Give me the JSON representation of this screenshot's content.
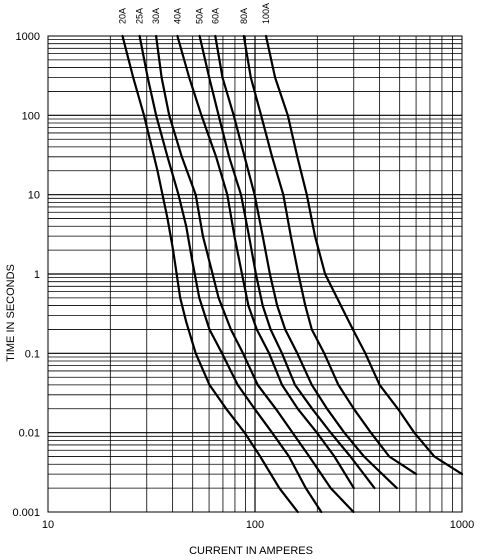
{
  "chart_data": {
    "type": "line",
    "title": "",
    "xlabel": "CURRENT IN AMPERES",
    "ylabel": "TIME IN SECONDS",
    "x_scale": "log",
    "y_scale": "log",
    "xlim": [
      10,
      1000
    ],
    "ylim": [
      0.001,
      1000
    ],
    "x_tick_labels": [
      "10",
      "100",
      "1000"
    ],
    "y_tick_labels": [
      "0.001",
      "0.01",
      "0.1",
      "1",
      "10",
      "100",
      "1000"
    ],
    "grid": true,
    "series": [
      {
        "name": "20A",
        "points": [
          [
            22.9,
            1000
          ],
          [
            25.8,
            300
          ],
          [
            29.1,
            100
          ],
          [
            33.8,
            20
          ],
          [
            37.8,
            5
          ],
          [
            40.2,
            2
          ],
          [
            43.5,
            0.5
          ],
          [
            46.5,
            0.25
          ],
          [
            51.7,
            0.1
          ],
          [
            60.3,
            0.04
          ],
          [
            72.6,
            0.02
          ],
          [
            89.1,
            0.01
          ],
          [
            106,
            0.005
          ],
          [
            131,
            0.002
          ],
          [
            161,
            0.001
          ]
        ]
      },
      {
        "name": "25A",
        "points": [
          [
            27.7,
            1000
          ],
          [
            30.3,
            300
          ],
          [
            33.3,
            100
          ],
          [
            37.8,
            30
          ],
          [
            42.7,
            10
          ],
          [
            46.5,
            4
          ],
          [
            49.7,
            1.5
          ],
          [
            53.8,
            0.5
          ],
          [
            60.3,
            0.2
          ],
          [
            69.3,
            0.1
          ],
          [
            82.5,
            0.04
          ],
          [
            99.6,
            0.02
          ],
          [
            121,
            0.01
          ],
          [
            146,
            0.005
          ],
          [
            176,
            0.002
          ],
          [
            209,
            0.001
          ]
        ]
      },
      {
        "name": "30A",
        "points": [
          [
            33.3,
            1000
          ],
          [
            35.4,
            300
          ],
          [
            38.5,
            100
          ],
          [
            44.3,
            30
          ],
          [
            51.7,
            10
          ],
          [
            56,
            3
          ],
          [
            61.3,
            1.2
          ],
          [
            66.7,
            0.5
          ],
          [
            76.5,
            0.2
          ],
          [
            87.5,
            0.1
          ],
          [
            103,
            0.04
          ],
          [
            126,
            0.02
          ],
          [
            152,
            0.01
          ],
          [
            183,
            0.005
          ],
          [
            232,
            0.002
          ],
          [
            299,
            0.001
          ]
        ]
      },
      {
        "name": "40A",
        "points": [
          [
            42.2,
            1000
          ],
          [
            48.1,
            300
          ],
          [
            55.1,
            100
          ],
          [
            64.9,
            30
          ],
          [
            73.5,
            10
          ],
          [
            79.5,
            3
          ],
          [
            86.5,
            1
          ],
          [
            92.9,
            0.4
          ],
          [
            102,
            0.2
          ],
          [
            117,
            0.1
          ],
          [
            135,
            0.04
          ],
          [
            161,
            0.02
          ],
          [
            199,
            0.01
          ],
          [
            242,
            0.005
          ],
          [
            300,
            0.002
          ]
        ]
      },
      {
        "name": "50A",
        "points": [
          [
            54,
            1000
          ],
          [
            60.1,
            300
          ],
          [
            66.7,
            100
          ],
          [
            75,
            30
          ],
          [
            85.6,
            10
          ],
          [
            93.5,
            3
          ],
          [
            101,
            1
          ],
          [
            109,
            0.4
          ],
          [
            119,
            0.2
          ],
          [
            135,
            0.1
          ],
          [
            156,
            0.04
          ],
          [
            189,
            0.02
          ],
          [
            232,
            0.01
          ],
          [
            289,
            0.005
          ],
          [
            378,
            0.002
          ]
        ]
      },
      {
        "name": "60A",
        "points": [
          [
            64.3,
            1000
          ],
          [
            69.7,
            300
          ],
          [
            78.9,
            100
          ],
          [
            89.1,
            30
          ],
          [
            99.6,
            10
          ],
          [
            109,
            3
          ],
          [
            118,
            1
          ],
          [
            128,
            0.4
          ],
          [
            140,
            0.2
          ],
          [
            160,
            0.1
          ],
          [
            188,
            0.04
          ],
          [
            223,
            0.02
          ],
          [
            270,
            0.01
          ],
          [
            336,
            0.005
          ],
          [
            484,
            0.002
          ]
        ]
      },
      {
        "name": "80A",
        "points": [
          [
            88.3,
            1000
          ],
          [
            95.4,
            300
          ],
          [
            107,
            100
          ],
          [
            121,
            30
          ],
          [
            137,
            10
          ],
          [
            149,
            3
          ],
          [
            162,
            1
          ],
          [
            175,
            0.4
          ],
          [
            188,
            0.2
          ],
          [
            216,
            0.1
          ],
          [
            253,
            0.04
          ],
          [
            300,
            0.02
          ],
          [
            363,
            0.01
          ],
          [
            445,
            0.005
          ],
          [
            600,
            0.003
          ]
        ]
      },
      {
        "name": "100A",
        "points": [
          [
            113,
            1000
          ],
          [
            125,
            300
          ],
          [
            144,
            100
          ],
          [
            160,
            30
          ],
          [
            178,
            10
          ],
          [
            195,
            3
          ],
          [
            218,
            1
          ],
          [
            260,
            0.4
          ],
          [
            297,
            0.2
          ],
          [
            341,
            0.1
          ],
          [
            400,
            0.04
          ],
          [
            490,
            0.02
          ],
          [
            588,
            0.01
          ],
          [
            735,
            0.005
          ],
          [
            1000,
            0.003
          ]
        ]
      }
    ]
  }
}
